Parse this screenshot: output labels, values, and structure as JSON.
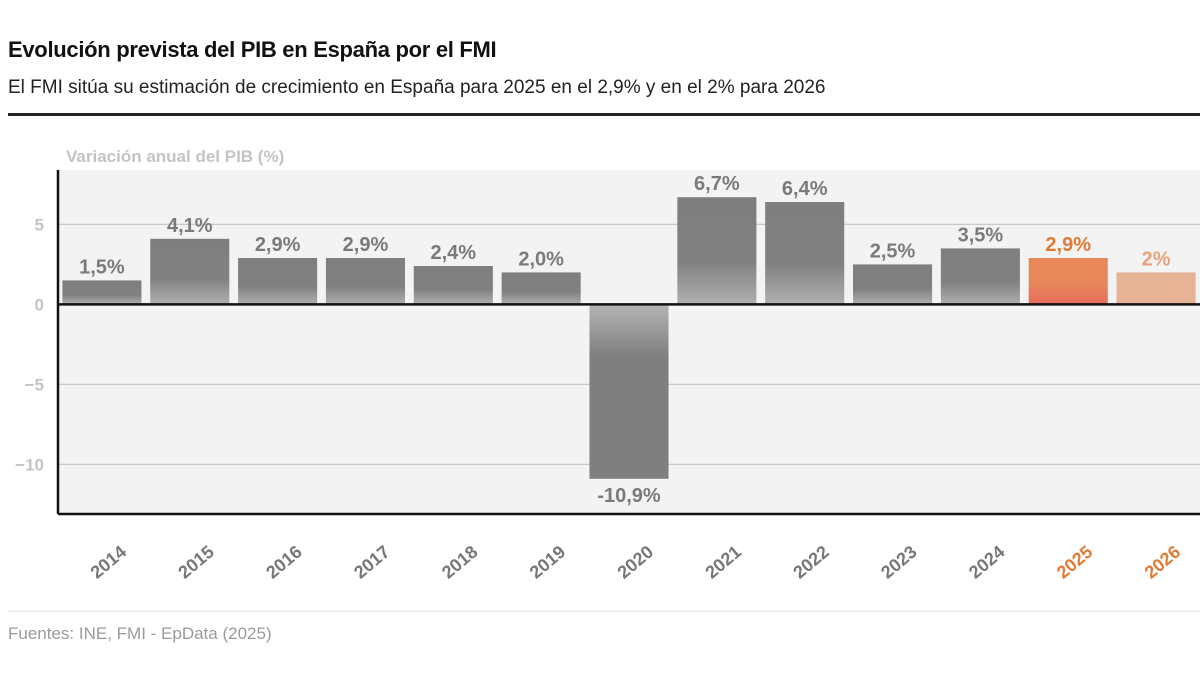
{
  "header": {
    "title": "Evolución prevista del PIB en España por el FMI",
    "subtitle": "El FMI sitúa su estimación de crecimiento en España para 2025 en el 2,9% y en el 2% para 2026"
  },
  "footer": {
    "source": "Fuentes: INE, FMI - EpData (2025)"
  },
  "colors": {
    "bar": "#7f7f7f",
    "forecast_2025": "#e8875a",
    "forecast_2026": "#e6b396",
    "forecast_label": "#e07a35",
    "label": "#7a7a7a",
    "axis_label": "#bdbdbd",
    "plot_bg": "#f3f3f3"
  },
  "chart_data": {
    "type": "bar",
    "title": "Evolución prevista del PIB en España por el FMI",
    "subtitle": "El FMI sitúa su estimación de crecimiento en España para 2025 en el 2,9% y en el 2% para 2026",
    "ylabel": "Variación anual del PIB (%)",
    "xlabel": "",
    "categories": [
      "2014",
      "2015",
      "2016",
      "2017",
      "2018",
      "2019",
      "2020",
      "2021",
      "2022",
      "2023",
      "2024",
      "2025",
      "2026"
    ],
    "values": [
      1.5,
      4.1,
      2.9,
      2.9,
      2.4,
      2.0,
      -10.9,
      6.7,
      6.4,
      2.5,
      3.5,
      2.9,
      2.0
    ],
    "data_labels": [
      "1,5%",
      "4,1%",
      "2,9%",
      "2,9%",
      "2,4%",
      "2,0%",
      "-10,9%",
      "6,7%",
      "6,4%",
      "2,5%",
      "3,5%",
      "2,9%",
      "2%"
    ],
    "highlighted": [
      "2025",
      "2026"
    ],
    "yticks": [
      5,
      0,
      -5,
      -10
    ],
    "ytick_labels": [
      "5",
      "0",
      "−5",
      "−10"
    ],
    "ylim": [
      -13.1,
      8.4
    ],
    "grid": true,
    "legend": "none"
  }
}
